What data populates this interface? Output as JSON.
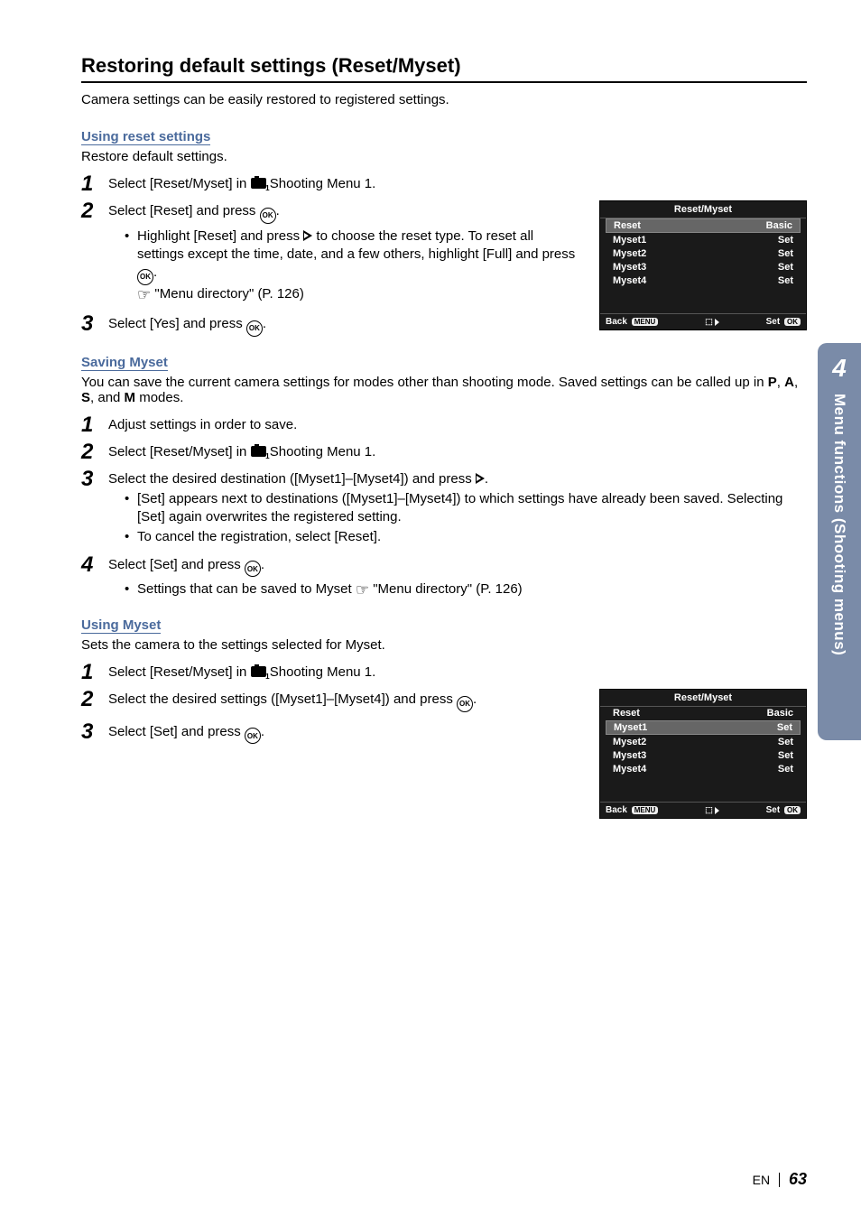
{
  "sideTab": {
    "number": "4",
    "text": "Menu functions (Shooting menus)"
  },
  "section": {
    "title": "Restoring default settings (Reset/Myset)",
    "intro": "Camera settings can be easily restored to registered settings."
  },
  "usingReset": {
    "heading": "Using reset settings",
    "intro": "Restore default settings.",
    "step1_a": "Select [Reset/Myset] in ",
    "step1_b": " Shooting Menu 1.",
    "step2": "Select [Reset] and press ",
    "step2_bullet1a": "Highlight [Reset] and press ",
    "step2_bullet1b": " to choose the reset type. To reset all settings except the time, date, and a few others, highlight [Full] and press ",
    "step2_bullet1c": ".",
    "step2_ref": " \"Menu directory\" (P. 126)",
    "step3": "Select [Yes] and press "
  },
  "savingMyset": {
    "heading": "Saving Myset",
    "intro_a": "You can save the current camera settings for modes other than shooting mode. Saved settings can be called up in ",
    "intro_b": " modes.",
    "modes": [
      "P",
      "A",
      "S",
      "M"
    ],
    "step1": "Adjust settings in order to save.",
    "step2_a": "Select [Reset/Myset] in ",
    "step2_b": " Shooting Menu 1.",
    "step3_a": "Select the desired destination ([Myset1]–[Myset4]) and press ",
    "step3_b": ".",
    "step3_bullet1": "[Set] appears next to destinations ([Myset1]–[Myset4]) to which settings have already been saved. Selecting [Set] again overwrites the registered setting.",
    "step3_bullet2": "To cancel the registration, select [Reset].",
    "step4": "Select [Set] and press ",
    "step4_bullet_a": "Settings that can be saved to Myset ",
    "step4_bullet_b": " \"Menu directory\" (P. 126)"
  },
  "usingMyset": {
    "heading": "Using Myset",
    "intro": "Sets the camera to the settings selected for Myset.",
    "step1_a": "Select [Reset/Myset] in ",
    "step1_b": " Shooting Menu 1.",
    "step2_a": "Select the desired settings ([Myset1]–[Myset4]) and press ",
    "step2_b": ".",
    "step3": "Select [Set] and press "
  },
  "menuScreen": {
    "title": "Reset/Myset",
    "rows": [
      {
        "label": "Reset",
        "value": "Basic"
      },
      {
        "label": "Myset1",
        "value": "Set"
      },
      {
        "label": "Myset2",
        "value": "Set"
      },
      {
        "label": "Myset3",
        "value": "Set"
      },
      {
        "label": "Myset4",
        "value": "Set"
      }
    ],
    "footer": {
      "back": "Back",
      "backPill": "MENU",
      "set": "Set",
      "setPill": "OK"
    }
  },
  "menuHighlight": {
    "screen1": 0,
    "screen2": 1
  },
  "footer": {
    "lang": "EN",
    "page": "63"
  },
  "colors": {
    "sideTab": "#7a8ba8",
    "subsection": "#4a6a9c",
    "menuBg": "#1a1a1a",
    "menuHighlight": "#666"
  }
}
